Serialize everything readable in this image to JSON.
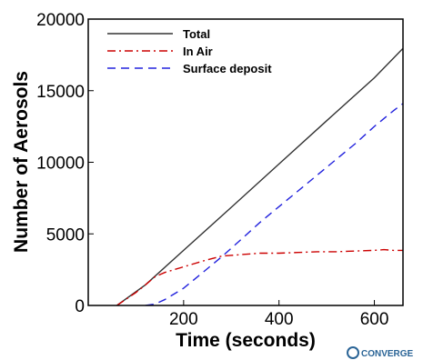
{
  "chart_data": {
    "type": "line",
    "title": "",
    "xlabel": "Time (seconds)",
    "ylabel": "Number of Aerosols",
    "xlim": [
      0,
      660
    ],
    "ylim": [
      0,
      20000
    ],
    "xticks": [
      200,
      400,
      600
    ],
    "yticks": [
      0,
      5000,
      10000,
      15000,
      20000
    ],
    "grid": false,
    "legend_position": "top-left",
    "series": [
      {
        "name": "Total",
        "color": "#333333",
        "style": "solid",
        "x": [
          60,
          120,
          200,
          300,
          400,
          500,
          600,
          660
        ],
        "y": [
          0,
          1440,
          3850,
          6860,
          9880,
          12900,
          15900,
          17950
        ]
      },
      {
        "name": "In Air",
        "color": "#cc0000",
        "style": "dashdot",
        "x": [
          60,
          100,
          120,
          140,
          160,
          200,
          240,
          280,
          320,
          360,
          400,
          440,
          480,
          520,
          560,
          600,
          620,
          640,
          660
        ],
        "y": [
          0,
          900,
          1440,
          2000,
          2300,
          2700,
          3100,
          3450,
          3550,
          3650,
          3650,
          3700,
          3750,
          3750,
          3800,
          3850,
          3900,
          3850,
          3850
        ]
      },
      {
        "name": "Surface deposit",
        "color": "#2222dd",
        "style": "dashed",
        "x": [
          120,
          140,
          160,
          200,
          240,
          280,
          320,
          360,
          400,
          440,
          480,
          520,
          560,
          600,
          640,
          660
        ],
        "y": [
          0,
          100,
          400,
          1200,
          2300,
          3400,
          4600,
          5800,
          6900,
          8000,
          9100,
          10200,
          11300,
          12500,
          13600,
          14100
        ]
      }
    ]
  },
  "logo": {
    "text": "CONVERGE",
    "color": "#2a6496"
  }
}
